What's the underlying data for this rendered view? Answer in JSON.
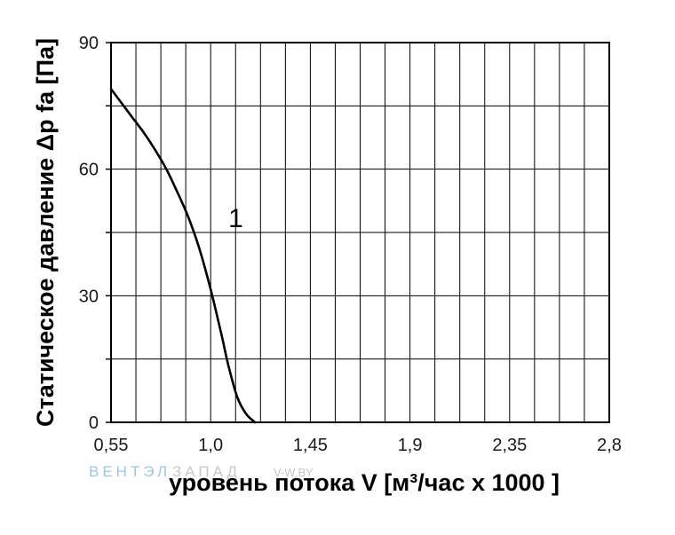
{
  "chart_data": {
    "type": "line",
    "xlabel": "уровень потока  V [м³/час x 1000 ]",
    "ylabel": "Статическое давление  Δp fa [Па]",
    "xlim": [
      0.55,
      2.8
    ],
    "ylim": [
      0,
      90
    ],
    "x_ticks": [
      "0,55",
      "1,0",
      "1,45",
      "1,9",
      "2,35",
      "2,8"
    ],
    "x_tick_values": [
      0.55,
      1.0,
      1.45,
      1.9,
      2.35,
      2.8
    ],
    "y_ticks": [
      "0",
      "30",
      "60",
      "90"
    ],
    "y_tick_values": [
      0,
      30,
      60,
      90
    ],
    "grid": true,
    "series": [
      {
        "name": "1",
        "x": [
          0.55,
          0.6,
          0.65,
          0.7,
          0.75,
          0.8,
          0.85,
          0.9,
          0.95,
          1.0,
          1.05,
          1.08,
          1.12,
          1.16,
          1.2
        ],
        "y": [
          79,
          75.5,
          72,
          68.5,
          64.5,
          60,
          54.5,
          48.5,
          41,
          31.5,
          20.5,
          13.5,
          6,
          2,
          0
        ]
      }
    ],
    "annotations": [
      {
        "text": "1",
        "x": 1.04,
        "y": 49
      }
    ]
  },
  "watermark": {
    "part1": "ВЕНТЭЛ",
    "part2": "ЗАПАД",
    "part3": "V-W.BY"
  },
  "colors": {
    "line": "#000000",
    "grid": "#000000",
    "text": "#1a1a1a"
  }
}
